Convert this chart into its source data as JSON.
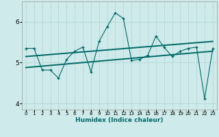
{
  "xlabel": "Humidex (Indice chaleur)",
  "bg_color": "#ceeaea",
  "line_color": "#006868",
  "grid_color": "#b8d8d8",
  "x_values": [
    0,
    1,
    2,
    3,
    4,
    5,
    6,
    7,
    8,
    9,
    10,
    11,
    12,
    13,
    14,
    15,
    16,
    17,
    18,
    19,
    20,
    21,
    22,
    23
  ],
  "y_main": [
    5.35,
    5.35,
    4.82,
    4.82,
    4.62,
    5.08,
    5.28,
    5.38,
    4.78,
    5.52,
    5.88,
    6.22,
    6.08,
    5.05,
    5.08,
    5.18,
    5.65,
    5.38,
    5.15,
    5.28,
    5.35,
    5.38,
    4.12,
    5.35
  ],
  "y_trend1_x": [
    0,
    23
  ],
  "y_trend1_y": [
    5.15,
    5.52
  ],
  "y_trend2_x": [
    0,
    23
  ],
  "y_trend2_y": [
    4.88,
    5.28
  ],
  "ylim": [
    3.85,
    6.5
  ],
  "xlim": [
    -0.5,
    23.5
  ],
  "yticks": [
    4,
    5,
    6
  ],
  "xticks": [
    0,
    1,
    2,
    3,
    4,
    5,
    6,
    7,
    8,
    9,
    10,
    11,
    12,
    13,
    14,
    15,
    16,
    17,
    18,
    19,
    20,
    21,
    22,
    23
  ]
}
